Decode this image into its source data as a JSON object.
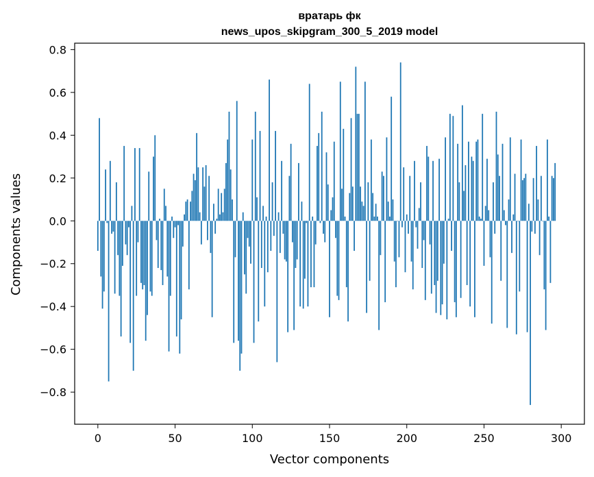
{
  "chart_data": {
    "type": "bar",
    "title_line1": "вратарь фк",
    "title_line2": "news_upos_skipgram_300_5_2019 model",
    "xlabel": "Vector components",
    "ylabel": "Components values",
    "xlim": [
      -15,
      315
    ],
    "ylim": [
      -0.95,
      0.83
    ],
    "xticks": [
      0,
      50,
      100,
      150,
      200,
      250,
      300
    ],
    "xtick_labels": [
      "0",
      "50",
      "100",
      "150",
      "200",
      "250",
      "300"
    ],
    "yticks": [
      -0.8,
      -0.6,
      -0.4,
      -0.2,
      0.0,
      0.2,
      0.4,
      0.6,
      0.8
    ],
    "ytick_labels": [
      "−0.8",
      "−0.6",
      "−0.4",
      "−0.2",
      "0.0",
      "0.2",
      "0.4",
      "0.6",
      "0.8"
    ],
    "bar_color": "#1f77b4",
    "values": [
      -0.14,
      0.48,
      -0.26,
      -0.41,
      -0.33,
      0.24,
      -0.01,
      -0.75,
      0.28,
      -0.06,
      -0.05,
      -0.34,
      0.18,
      -0.16,
      -0.35,
      -0.54,
      -0.21,
      0.35,
      -0.11,
      -0.16,
      -0.03,
      -0.57,
      0.07,
      -0.7,
      0.34,
      -0.35,
      -0.1,
      0.34,
      -0.29,
      -0.32,
      -0.3,
      -0.56,
      -0.44,
      0.23,
      -0.33,
      -0.35,
      0.3,
      0.4,
      -0.09,
      -0.22,
      0.01,
      -0.23,
      -0.3,
      0.15,
      0.07,
      -0.26,
      -0.61,
      -0.35,
      0.02,
      -0.08,
      -0.03,
      -0.54,
      -0.02,
      -0.62,
      -0.46,
      -0.12,
      0.03,
      0.09,
      0.1,
      -0.32,
      0.09,
      0.14,
      0.22,
      0.19,
      0.41,
      0.25,
      0.04,
      -0.11,
      0.25,
      0.16,
      0.26,
      -0.09,
      0.21,
      -0.15,
      -0.45,
      0.08,
      -0.06,
      0.01,
      0.15,
      0.03,
      0.13,
      0.04,
      0.15,
      0.27,
      0.38,
      0.51,
      0.24,
      0.1,
      -0.57,
      -0.17,
      0.56,
      -0.56,
      -0.7,
      -0.62,
      0.04,
      -0.25,
      -0.34,
      -0.08,
      -0.12,
      -0.2,
      0.38,
      -0.57,
      0.51,
      0.11,
      -0.47,
      0.42,
      -0.22,
      0.07,
      -0.4,
      0.02,
      -0.24,
      0.66,
      -0.14,
      0.18,
      -0.07,
      0.42,
      -0.66,
      0.04,
      -0.15,
      0.28,
      -0.06,
      -0.18,
      -0.19,
      -0.52,
      0.21,
      0.36,
      -0.1,
      -0.51,
      -0.22,
      -0.18,
      0.27,
      -0.4,
      0.09,
      -0.41,
      -0.27,
      -0.01,
      -0.4,
      0.64,
      -0.31,
      0.02,
      -0.31,
      -0.11,
      0.35,
      0.41,
      -0.01,
      0.51,
      -0.06,
      -0.1,
      0.32,
      0.17,
      -0.45,
      0.05,
      0.11,
      0.37,
      -0.08,
      -0.35,
      -0.37,
      0.65,
      0.15,
      0.43,
      0.02,
      -0.31,
      -0.47,
      0.13,
      0.48,
      0.16,
      -0.14,
      0.72,
      0.5,
      0.5,
      0.16,
      0.09,
      0.07,
      0.65,
      -0.43,
      0.18,
      -0.28,
      0.38,
      0.13,
      0.02,
      0.08,
      0.02,
      -0.51,
      -0.16,
      0.23,
      0.21,
      -0.38,
      0.39,
      0.09,
      0.02,
      0.58,
      0.1,
      -0.19,
      -0.31,
      0.0,
      -0.17,
      0.74,
      -0.03,
      0.25,
      -0.24,
      0.03,
      -0.06,
      0.21,
      -0.19,
      -0.32,
      0.28,
      -0.03,
      -0.13,
      0.06,
      0.18,
      -0.22,
      -0.09,
      -0.37,
      0.35,
      0.3,
      -0.11,
      -0.34,
      0.28,
      -0.3,
      -0.43,
      -0.28,
      0.29,
      -0.44,
      -0.39,
      -0.2,
      0.39,
      -0.46,
      0.01,
      0.5,
      -0.14,
      0.49,
      -0.38,
      -0.45,
      0.36,
      0.18,
      -0.36,
      0.54,
      0.14,
      0.26,
      -0.3,
      0.37,
      -0.4,
      0.3,
      0.28,
      -0.45,
      0.37,
      0.38,
      0.02,
      0.01,
      0.5,
      -0.21,
      0.07,
      0.29,
      0.05,
      -0.17,
      -0.48,
      0.18,
      -0.06,
      0.51,
      0.31,
      0.21,
      -0.28,
      0.36,
      0.05,
      -0.02,
      -0.5,
      0.1,
      0.39,
      -0.15,
      0.03,
      0.22,
      -0.53,
      0.0,
      -0.33,
      0.38,
      0.19,
      0.2,
      0.22,
      -0.52,
      0.08,
      -0.86,
      -0.05,
      0.2,
      -0.06,
      0.35,
      0.1,
      -0.16,
      0.21,
      0.0,
      -0.32,
      -0.51,
      0.38,
      0.02,
      -0.29,
      0.21,
      0.2,
      0.27
    ],
    "note": "values estimated from the figure"
  }
}
